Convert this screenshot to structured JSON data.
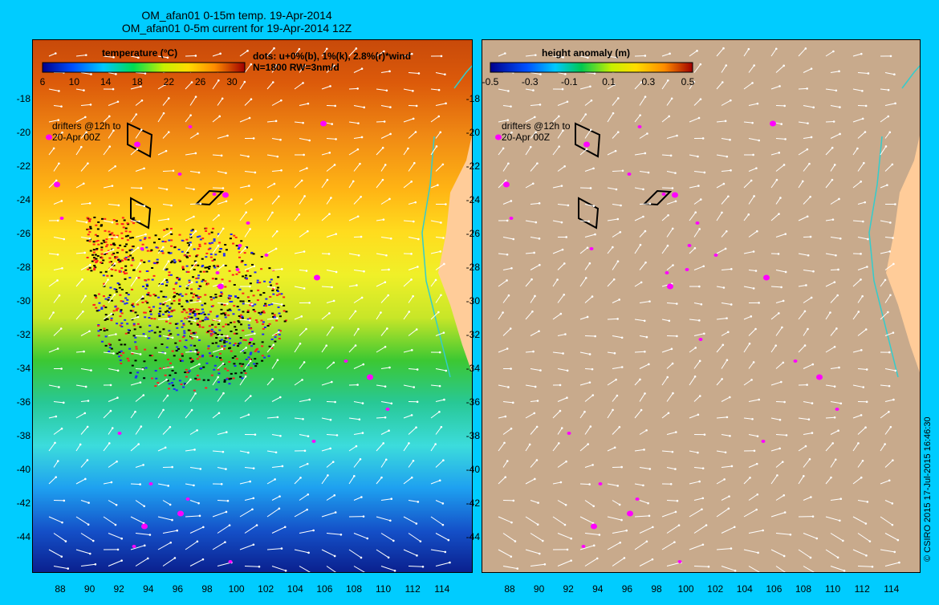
{
  "titles": {
    "line1": "OM_afan01 0-15m temp. 19-Apr-2014",
    "line2": "OM_afan01 0-5m current for 19-Apr-2014 12Z"
  },
  "left_panel": {
    "colorbar_title": "temperature (°C)",
    "colorbar_ticks": [
      "6",
      "10",
      "14",
      "18",
      "22",
      "26",
      "30"
    ],
    "dots_legend_line1": "dots: u+0%(b), 1%(k), 2.8%(r)*wind",
    "dots_legend_line2": "N=1800 RW=3nm/d",
    "drifters_line1": "drifters @12h to",
    "drifters_line2": "20-Apr 00Z"
  },
  "right_panel": {
    "colorbar_title": "height anomaly  (m)",
    "colorbar_ticks": [
      "-0.5",
      "-0.3",
      "-0.1",
      "0.1",
      "0.3",
      "0.5"
    ],
    "drifters_line1": "drifters @12h to",
    "drifters_line2": "20-Apr 00Z"
  },
  "axes": {
    "lat_ticks": [
      "-18",
      "-20",
      "-22",
      "-24",
      "-26",
      "-28",
      "-30",
      "-32",
      "-34",
      "-36",
      "-38",
      "-40",
      "-42",
      "-44"
    ],
    "lon_ticks": [
      "88",
      "90",
      "92",
      "94",
      "96",
      "98",
      "100",
      "102",
      "104",
      "106",
      "108",
      "110",
      "112",
      "114"
    ]
  },
  "copyright": "© CSIRO 2015   17-Jul-2015 16:46:30",
  "colors": {
    "background": "#00ccff",
    "land": "#ffcc99",
    "ocean_height_panel": "#c8aa8c",
    "drifters": "#ff00ff",
    "coast_outline": "#33cccc"
  }
}
